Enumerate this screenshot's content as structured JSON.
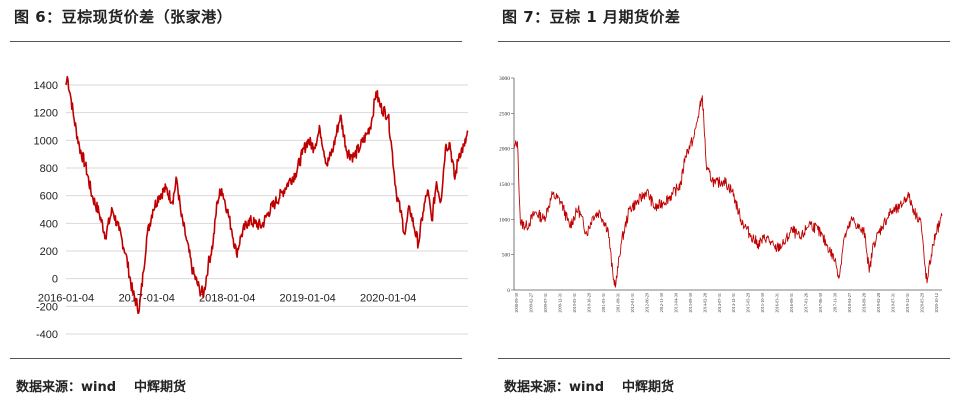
{
  "left": {
    "title": "图 6：豆棕现货价差（张家港）",
    "source_label": "数据来源：wind",
    "source_org": "中辉期货",
    "chart_data": {
      "type": "line",
      "title": "图 6：豆棕现货价差（张家港）",
      "xlabel": "",
      "ylabel": "",
      "ylim": [
        -400,
        1400
      ],
      "yticks": [
        -400,
        -200,
        0,
        200,
        400,
        600,
        800,
        1000,
        1200,
        1400
      ],
      "xticks": [
        "2016-01-04",
        "2017-01-04",
        "2018-01-04",
        "2019-01-04",
        "2020-01-04"
      ],
      "x_range": [
        "2016-01-04",
        "2020-12-31"
      ],
      "grid": "horizontal",
      "color": "#c00000",
      "points": [
        [
          "2016-01-04",
          1400
        ],
        [
          "2016-01-10",
          1460
        ],
        [
          "2016-01-25",
          1320
        ],
        [
          "2016-02-10",
          1150
        ],
        [
          "2016-03-05",
          950
        ],
        [
          "2016-04-01",
          820
        ],
        [
          "2016-05-01",
          600
        ],
        [
          "2016-06-01",
          480
        ],
        [
          "2016-07-01",
          310
        ],
        [
          "2016-08-01",
          500
        ],
        [
          "2016-09-01",
          350
        ],
        [
          "2016-10-01",
          180
        ],
        [
          "2016-11-01",
          -100
        ],
        [
          "2016-12-01",
          -230
        ],
        [
          "2016-12-20",
          50
        ],
        [
          "2017-01-04",
          300
        ],
        [
          "2017-02-01",
          500
        ],
        [
          "2017-03-01",
          600
        ],
        [
          "2017-04-01",
          650
        ],
        [
          "2017-05-01",
          560
        ],
        [
          "2017-05-20",
          720
        ],
        [
          "2017-06-10",
          450
        ],
        [
          "2017-07-01",
          300
        ],
        [
          "2017-08-01",
          50
        ],
        [
          "2017-09-01",
          -80
        ],
        [
          "2017-09-20",
          -110
        ],
        [
          "2017-10-10",
          100
        ],
        [
          "2017-11-01",
          260
        ],
        [
          "2017-11-20",
          560
        ],
        [
          "2017-12-10",
          650
        ],
        [
          "2018-01-04",
          500
        ],
        [
          "2018-01-25",
          350
        ],
        [
          "2018-02-15",
          180
        ],
        [
          "2018-03-10",
          320
        ],
        [
          "2018-04-10",
          420
        ],
        [
          "2018-05-10",
          400
        ],
        [
          "2018-06-10",
          380
        ],
        [
          "2018-07-10",
          480
        ],
        [
          "2018-08-10",
          550
        ],
        [
          "2018-09-10",
          620
        ],
        [
          "2018-10-10",
          700
        ],
        [
          "2018-11-10",
          760
        ],
        [
          "2018-12-10",
          900
        ],
        [
          "2019-01-04",
          1000
        ],
        [
          "2019-02-01",
          950
        ],
        [
          "2019-03-01",
          1080
        ],
        [
          "2019-04-01",
          820
        ],
        [
          "2019-05-01",
          950
        ],
        [
          "2019-06-01",
          1180
        ],
        [
          "2019-07-01",
          920
        ],
        [
          "2019-08-01",
          880
        ],
        [
          "2019-09-01",
          960
        ],
        [
          "2019-10-01",
          1050
        ],
        [
          "2019-10-20",
          1130
        ],
        [
          "2019-11-10",
          1350
        ],
        [
          "2019-12-01",
          1240
        ],
        [
          "2020-01-04",
          1180
        ],
        [
          "2020-01-20",
          950
        ],
        [
          "2020-02-10",
          620
        ],
        [
          "2020-03-01",
          480
        ],
        [
          "2020-03-20",
          320
        ],
        [
          "2020-04-10",
          520
        ],
        [
          "2020-05-01",
          370
        ],
        [
          "2020-05-20",
          250
        ],
        [
          "2020-06-10",
          480
        ],
        [
          "2020-07-01",
          640
        ],
        [
          "2020-07-20",
          420
        ],
        [
          "2020-08-10",
          700
        ],
        [
          "2020-08-30",
          560
        ],
        [
          "2020-09-20",
          950
        ],
        [
          "2020-10-10",
          980
        ],
        [
          "2020-11-01",
          720
        ],
        [
          "2020-11-20",
          900
        ],
        [
          "2020-12-15",
          960
        ],
        [
          "2020-12-31",
          1060
        ]
      ]
    }
  },
  "right": {
    "title": "图 7：豆棕 1 月期货价差",
    "source_label": "数据来源：wind",
    "source_org": "中辉期货",
    "chart_data": {
      "type": "line",
      "title": "图 7：豆棕 1 月期货价差",
      "xlabel": "",
      "ylabel": "",
      "ylim": [
        0,
        3000
      ],
      "yticks": [
        0,
        500,
        1000,
        1500,
        2000,
        2500,
        3000
      ],
      "xticks": [
        "2008-09-30",
        "2009-02-27",
        "2009-07-31",
        "2009-12-31",
        "2010-05-31",
        "2010-10-29",
        "2011-03-31",
        "2011-08-31",
        "2012-01-31",
        "2012-06-29",
        "2012-11-30",
        "2013-04-30",
        "2013-09-30",
        "2014-02-28",
        "2014-07-31",
        "2014-12-31",
        "2015-05-29",
        "2015-10-30",
        "2016-03-31",
        "2016-08-31",
        "2017-01-26",
        "2017-06-30",
        "2017-11-30",
        "2018-04-27",
        "2018-09-28",
        "2019-02-28",
        "2019-07-31",
        "2019-12-31",
        "2020-05-29",
        "2020-10-12"
      ],
      "grid": "none",
      "color": "#c00000",
      "points": [
        [
          0.0,
          2000
        ],
        [
          0.008,
          2100
        ],
        [
          0.015,
          950
        ],
        [
          0.03,
          900
        ],
        [
          0.05,
          1100
        ],
        [
          0.07,
          1000
        ],
        [
          0.09,
          1350
        ],
        [
          0.11,
          1250
        ],
        [
          0.13,
          900
        ],
        [
          0.15,
          1150
        ],
        [
          0.17,
          800
        ],
        [
          0.185,
          1050
        ],
        [
          0.2,
          1100
        ],
        [
          0.22,
          850
        ],
        [
          0.232,
          150
        ],
        [
          0.238,
          80
        ],
        [
          0.25,
          650
        ],
        [
          0.27,
          1150
        ],
        [
          0.29,
          1250
        ],
        [
          0.31,
          1400
        ],
        [
          0.33,
          1150
        ],
        [
          0.35,
          1250
        ],
        [
          0.37,
          1350
        ],
        [
          0.39,
          1500
        ],
        [
          0.4,
          1900
        ],
        [
          0.42,
          2150
        ],
        [
          0.43,
          2450
        ],
        [
          0.44,
          2750
        ],
        [
          0.45,
          1700
        ],
        [
          0.47,
          1500
        ],
        [
          0.49,
          1550
        ],
        [
          0.51,
          1400
        ],
        [
          0.53,
          1000
        ],
        [
          0.55,
          800
        ],
        [
          0.57,
          650
        ],
        [
          0.59,
          750
        ],
        [
          0.61,
          580
        ],
        [
          0.63,
          650
        ],
        [
          0.65,
          850
        ],
        [
          0.67,
          720
        ],
        [
          0.69,
          950
        ],
        [
          0.71,
          850
        ],
        [
          0.73,
          650
        ],
        [
          0.75,
          420
        ],
        [
          0.76,
          180
        ],
        [
          0.77,
          700
        ],
        [
          0.79,
          1000
        ],
        [
          0.81,
          850
        ],
        [
          0.82,
          800
        ],
        [
          0.83,
          250
        ],
        [
          0.84,
          650
        ],
        [
          0.86,
          900
        ],
        [
          0.88,
          1100
        ],
        [
          0.9,
          1150
        ],
        [
          0.92,
          1350
        ],
        [
          0.94,
          1050
        ],
        [
          0.95,
          1000
        ],
        [
          0.96,
          350
        ],
        [
          0.965,
          100
        ],
        [
          0.975,
          500
        ],
        [
          0.985,
          800
        ],
        [
          0.995,
          950
        ],
        [
          1.0,
          1050
        ]
      ]
    }
  }
}
